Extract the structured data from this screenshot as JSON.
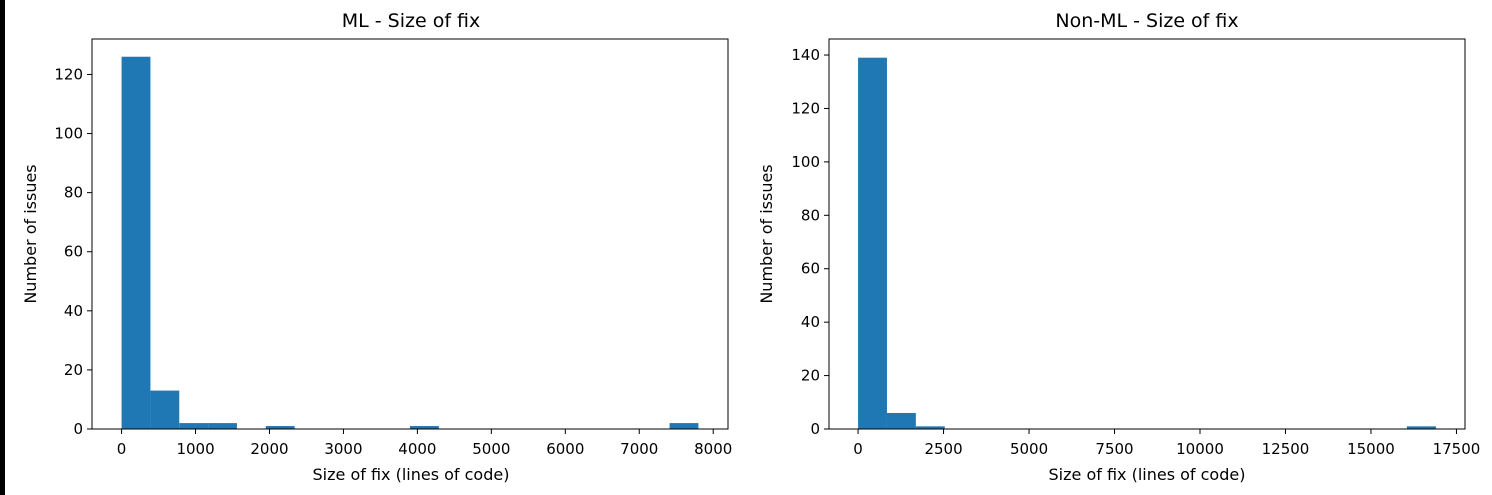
{
  "chart_data": [
    {
      "type": "bar",
      "title": "ML - Size of fix",
      "xlabel": "Size of fix (lines of code)",
      "ylabel": "Number of issues",
      "xlim": [
        -400,
        8200
      ],
      "ylim": [
        0,
        132
      ],
      "xticks": [
        0,
        1000,
        2000,
        3000,
        4000,
        5000,
        6000,
        7000,
        8000
      ],
      "yticks": [
        0,
        20,
        40,
        60,
        80,
        100,
        120
      ],
      "bins": [
        {
          "x0": 0,
          "x1": 390,
          "value": 126
        },
        {
          "x0": 390,
          "x1": 780,
          "value": 13
        },
        {
          "x0": 780,
          "x1": 1170,
          "value": 2
        },
        {
          "x0": 1170,
          "x1": 1560,
          "value": 2
        },
        {
          "x0": 1950,
          "x1": 2340,
          "value": 1
        },
        {
          "x0": 3900,
          "x1": 4290,
          "value": 1
        },
        {
          "x0": 7410,
          "x1": 7800,
          "value": 2
        }
      ],
      "bar_color": "#1f77b4"
    },
    {
      "type": "bar",
      "title": "Non-ML - Size of fix",
      "xlabel": "Size of fix (lines of code)",
      "ylabel": "Number of issues",
      "xlim": [
        -850,
        17750
      ],
      "ylim": [
        0,
        146
      ],
      "xticks": [
        0,
        2500,
        5000,
        7500,
        10000,
        12500,
        15000,
        17500
      ],
      "yticks": [
        0,
        20,
        40,
        60,
        80,
        100,
        120,
        140
      ],
      "bins": [
        {
          "x0": 0,
          "x1": 845,
          "value": 139
        },
        {
          "x0": 845,
          "x1": 1690,
          "value": 6
        },
        {
          "x0": 1690,
          "x1": 2535,
          "value": 1
        },
        {
          "x0": 16050,
          "x1": 16900,
          "value": 1
        }
      ],
      "bar_color": "#1f77b4"
    }
  ]
}
